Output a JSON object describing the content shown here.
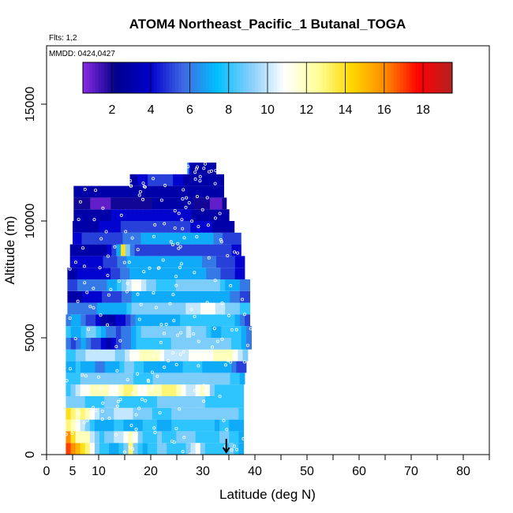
{
  "chart_data": {
    "type": "heatmap",
    "title": "ATOM4 Northeast_Pacific_1 Butanal_TOGA",
    "subtitle_flights": "Flts: 1,2",
    "subtitle_dates": "MMDD: 0424,0427",
    "xlabel": "Latitude (deg N)",
    "ylabel": "Altitude (m)",
    "xlim": [
      0,
      85
    ],
    "ylim": [
      0,
      17500
    ],
    "x_ticks": [
      "0",
      "5",
      "10",
      "20",
      "30",
      "40",
      "50",
      "60",
      "70",
      "80"
    ],
    "x_tick_values": [
      0,
      5,
      10,
      20,
      30,
      40,
      50,
      60,
      70,
      80
    ],
    "x_minor_ticks": [
      15,
      25,
      35,
      45,
      55,
      65,
      75,
      85
    ],
    "y_ticks": [
      "0",
      "5000",
      "10000",
      "15000"
    ],
    "y_tick_values": [
      0,
      5000,
      10000,
      15000
    ],
    "colorbar": {
      "range": [
        0.5,
        19.5
      ],
      "ticks": [
        "2",
        "4",
        "6",
        "8",
        "10",
        "12",
        "14",
        "16",
        "18"
      ],
      "tick_values": [
        2,
        4,
        6,
        8,
        10,
        12,
        14,
        16,
        18
      ],
      "divider_values": [
        2,
        4,
        6,
        8,
        10,
        12,
        14,
        16,
        18
      ],
      "colors": [
        "#8a2be2",
        "#00008b",
        "#0000cd",
        "#4169e1",
        "#00bfff",
        "#87cefa",
        "#ffffff",
        "#ffff99",
        "#ffd700",
        "#ff8c00",
        "#ff0000",
        "#b22222"
      ]
    },
    "marker": {
      "latitude": 34.5,
      "symbol": "down-arrow"
    },
    "bands": [
      {
        "alt": 250,
        "lat_start": 3.7,
        "lat_end": 37.8,
        "values": [
          17,
          16,
          15,
          14,
          13,
          11,
          9,
          8,
          8,
          7,
          7,
          8,
          9,
          13,
          9,
          8,
          7,
          8,
          8,
          9,
          9,
          8,
          8,
          8,
          8,
          9,
          10,
          11,
          9,
          8,
          8,
          8,
          8,
          8,
          9,
          8,
          7
        ]
      },
      {
        "alt": 750,
        "lat_start": 3.7,
        "lat_end": 37.8,
        "values": [
          16,
          14,
          12,
          12,
          12,
          10,
          9,
          8,
          9,
          9,
          10,
          10,
          11,
          12,
          11,
          9,
          8,
          8,
          8,
          9,
          8,
          8,
          8,
          9,
          9,
          9,
          9,
          8,
          8,
          8,
          8,
          8,
          9,
          9,
          8,
          8,
          7
        ]
      },
      {
        "alt": 1250,
        "lat_start": 3.7,
        "lat_end": 37.8,
        "values": [
          13,
          12,
          11,
          10,
          9,
          8,
          7,
          7,
          7,
          7,
          8,
          8,
          7,
          7,
          7,
          7,
          8,
          8,
          8,
          7,
          7,
          7,
          8,
          8,
          8,
          8,
          8,
          8,
          8,
          8,
          8,
          7,
          8,
          8,
          7,
          7,
          7
        ]
      },
      {
        "alt": 1750,
        "lat_start": 3.7,
        "lat_end": 37.8,
        "values": [
          14,
          13,
          12,
          13,
          12,
          11,
          10,
          9,
          9,
          9,
          10,
          10,
          10,
          10,
          9,
          9,
          9,
          9,
          8,
          8,
          8,
          8,
          9,
          9,
          9,
          9,
          9,
          9,
          9,
          9,
          9,
          9,
          9,
          9,
          9,
          9,
          8
        ]
      },
      {
        "alt": 2250,
        "lat_start": 3.7,
        "lat_end": 37.8,
        "values": [
          9,
          9,
          9,
          9,
          8,
          8,
          8,
          8,
          9,
          9,
          9,
          8,
          8,
          8,
          8,
          8,
          8,
          8,
          8,
          9,
          9,
          9,
          9,
          9,
          9,
          9,
          9,
          9,
          9,
          8,
          8,
          8,
          8,
          8,
          8,
          8,
          8
        ]
      },
      {
        "alt": 2750,
        "lat_start": 3.7,
        "lat_end": 37.8,
        "values": [
          8,
          9,
          10,
          11,
          11,
          12,
          12,
          12,
          12,
          11,
          11,
          12,
          13,
          13,
          12,
          11,
          11,
          12,
          12,
          12,
          13,
          13,
          13,
          12,
          11,
          10,
          10,
          11,
          12,
          11,
          9,
          8,
          8,
          8,
          8,
          8,
          8
        ]
      },
      {
        "alt": 3250,
        "lat_start": 3.7,
        "lat_end": 38.0,
        "values": [
          8,
          8,
          8,
          9,
          9,
          9,
          9,
          9,
          9,
          9,
          9,
          9,
          9,
          9,
          8,
          8,
          8,
          8,
          9,
          9,
          9,
          9,
          9,
          9,
          9,
          9,
          9,
          9,
          9,
          9,
          9,
          9,
          9,
          9,
          8,
          8,
          7
        ]
      },
      {
        "alt": 3750,
        "lat_start": 3.7,
        "lat_end": 38.3,
        "values": [
          7,
          7,
          8,
          7,
          7,
          7,
          6,
          6,
          7,
          7,
          7,
          8,
          9,
          9,
          8,
          8,
          7,
          7,
          7,
          7,
          7,
          7,
          7,
          7,
          8,
          8,
          8,
          8,
          7,
          7,
          7,
          7,
          7,
          7,
          6,
          5,
          5
        ]
      },
      {
        "alt": 4250,
        "lat_start": 3.7,
        "lat_end": 38.6,
        "values": [
          8,
          8,
          9,
          9,
          10,
          10,
          10,
          10,
          10,
          10,
          9,
          9,
          10,
          11,
          11,
          12,
          12,
          12,
          12,
          11,
          10,
          10,
          10,
          10,
          10,
          11,
          11,
          11,
          11,
          11,
          12,
          12,
          12,
          12,
          11,
          10,
          9
        ]
      },
      {
        "alt": 4750,
        "lat_start": 3.7,
        "lat_end": 39.3,
        "values": [
          6,
          5,
          6,
          7,
          6,
          5,
          5,
          4,
          3,
          4,
          5,
          6,
          6,
          7,
          8,
          8,
          8,
          8,
          8,
          8,
          8,
          9,
          9,
          9,
          9,
          9,
          9,
          9,
          9,
          9,
          9,
          9,
          9,
          8,
          8,
          7,
          6
        ]
      },
      {
        "alt": 5250,
        "lat_start": 3.7,
        "lat_end": 39.3,
        "values": [
          8,
          7,
          7,
          8,
          9,
          9,
          8,
          7,
          6,
          6,
          5,
          6,
          6,
          7,
          8,
          9,
          9,
          9,
          9,
          9,
          9,
          9,
          9,
          9,
          10,
          9,
          9,
          9,
          8,
          7,
          7,
          8,
          8,
          8,
          8,
          7,
          6
        ]
      },
      {
        "alt": 5750,
        "lat_start": 3.7,
        "lat_end": 39.0,
        "values": [
          6,
          7,
          7,
          6,
          5,
          5,
          4,
          3,
          3,
          3,
          4,
          4,
          5,
          6,
          7,
          7,
          7,
          7,
          7,
          7,
          7,
          7,
          7,
          8,
          8,
          8,
          8,
          8,
          8,
          8,
          8,
          8,
          8,
          8,
          7,
          6,
          5
        ]
      },
      {
        "alt": 6250,
        "lat_start": 4.0,
        "lat_end": 39.0,
        "values": [
          6,
          6,
          6,
          6,
          6,
          6,
          7,
          7,
          7,
          7,
          7,
          7,
          8,
          9,
          9,
          9,
          9,
          9,
          9,
          9,
          9,
          9,
          9,
          9,
          10,
          10,
          10,
          11,
          11,
          11,
          10,
          10,
          9,
          9,
          9,
          8,
          8
        ]
      },
      {
        "alt": 6750,
        "lat_start": 4.0,
        "lat_end": 39.0,
        "values": [
          3,
          3,
          3,
          4,
          4,
          4,
          4,
          5,
          5,
          5,
          5,
          6,
          6,
          7,
          7,
          7,
          7,
          7,
          7,
          7,
          7,
          7,
          7,
          7,
          7,
          7,
          7,
          7,
          7,
          7,
          7,
          7,
          7,
          6,
          6,
          5,
          5
        ]
      },
      {
        "alt": 7250,
        "lat_start": 4.0,
        "lat_end": 39.0,
        "values": [
          5,
          5,
          6,
          6,
          6,
          6,
          6,
          6,
          7,
          7,
          8,
          9,
          10,
          11,
          11,
          10,
          9,
          9,
          8,
          8,
          8,
          8,
          9,
          9,
          9,
          9,
          9,
          9,
          9,
          9,
          9,
          8,
          7,
          7,
          7,
          6,
          6
        ]
      },
      {
        "alt": 7750,
        "lat_start": 4.0,
        "lat_end": 38.0,
        "values": [
          3,
          3,
          4,
          4,
          4,
          4,
          4,
          4,
          4,
          5,
          5,
          6,
          6,
          7,
          7,
          7,
          7,
          7,
          7,
          7,
          7,
          7,
          7,
          7,
          7,
          7,
          7,
          7,
          7,
          6,
          6,
          6,
          5,
          5,
          5,
          4,
          4
        ]
      },
      {
        "alt": 8250,
        "lat_start": 4.5,
        "lat_end": 38.0,
        "values": [
          4,
          4,
          4,
          4,
          4,
          4,
          4,
          5,
          5,
          5,
          6,
          6,
          7,
          7,
          7,
          7,
          7,
          7,
          7,
          7,
          7,
          7,
          7,
          7,
          7,
          7,
          7,
          7,
          6,
          6,
          6,
          5,
          5,
          5,
          5,
          4,
          4
        ]
      },
      {
        "alt": 8750,
        "lat_start": 4.5,
        "lat_end": 37.3,
        "values": [
          3,
          3,
          3,
          3,
          3,
          3,
          3,
          3,
          4,
          5,
          7,
          14,
          9,
          6,
          5,
          5,
          5,
          5,
          5,
          5,
          5,
          5,
          5,
          5,
          5,
          5,
          5,
          5,
          5,
          5,
          5,
          5,
          5,
          5,
          5,
          4,
          4
        ]
      },
      {
        "alt": 9250,
        "lat_start": 5.0,
        "lat_end": 37.3,
        "values": [
          4,
          4,
          5,
          5,
          5,
          5,
          5,
          5,
          5,
          5,
          5,
          6,
          6,
          6,
          6,
          7,
          7,
          7,
          7,
          7,
          7,
          7,
          7,
          7,
          7,
          7,
          7,
          7,
          7,
          7,
          7,
          6,
          6,
          5,
          5,
          5,
          5
        ]
      },
      {
        "alt": 9750,
        "lat_start": 5.0,
        "lat_end": 36.0,
        "values": [
          3,
          3,
          3,
          3,
          3,
          3,
          4,
          4,
          4,
          4,
          4,
          5,
          5,
          5,
          5,
          5,
          5,
          5,
          5,
          5,
          5,
          5,
          5,
          5,
          5,
          5,
          5,
          4,
          4,
          4,
          4,
          4,
          3,
          3,
          3,
          3,
          3
        ]
      },
      {
        "alt": 10250,
        "lat_start": 5.2,
        "lat_end": 35.0,
        "values": [
          3,
          3,
          3,
          3,
          3,
          3,
          3,
          3,
          3,
          4,
          4,
          4,
          4,
          4,
          4,
          4,
          4,
          4,
          4,
          4,
          4,
          4,
          4,
          4,
          4,
          4,
          4,
          4,
          3,
          3,
          3,
          3,
          3,
          3,
          3,
          3,
          3
        ]
      },
      {
        "alt": 10750,
        "lat_start": 5.2,
        "lat_end": 34.5,
        "values": [
          2,
          2,
          2,
          2,
          1,
          1,
          1,
          1,
          1,
          2,
          2,
          2,
          2,
          2,
          2,
          2,
          2,
          2,
          2,
          3,
          3,
          3,
          3,
          3,
          3,
          3,
          3,
          3,
          3,
          2,
          2,
          2,
          2,
          1,
          1,
          1,
          2
        ]
      },
      {
        "alt": 11250,
        "lat_start": 5.2,
        "lat_end": 34.0,
        "values": [
          3,
          3,
          3,
          3,
          3,
          3,
          3,
          3,
          3,
          3,
          3,
          3,
          3,
          3,
          3,
          3,
          3,
          3,
          3,
          3,
          3,
          3,
          3,
          3,
          3,
          3,
          3,
          3,
          3,
          3,
          3,
          3,
          3,
          3,
          3,
          3,
          3
        ]
      },
      {
        "alt": 11750,
        "lat_start": 16.0,
        "lat_end": 34.0,
        "values": [
          3,
          3,
          3,
          4,
          4,
          4,
          4,
          5,
          5,
          5,
          5,
          5,
          5,
          5,
          5,
          5,
          5,
          4,
          4,
          4,
          4,
          3,
          3,
          3,
          3,
          3,
          3,
          3,
          3,
          3,
          3,
          3,
          3,
          3,
          3,
          3,
          3
        ]
      },
      {
        "alt": 12250,
        "lat_start": 27.0,
        "lat_end": 32.5,
        "values": [
          7,
          6,
          5,
          4,
          4,
          3,
          3,
          3,
          3,
          3,
          3,
          3,
          3,
          3,
          3,
          3,
          3,
          3,
          3,
          3,
          3,
          3,
          3,
          3,
          3,
          3,
          3,
          3,
          3,
          3,
          3,
          3,
          3,
          3,
          3,
          3,
          3
        ]
      }
    ]
  }
}
